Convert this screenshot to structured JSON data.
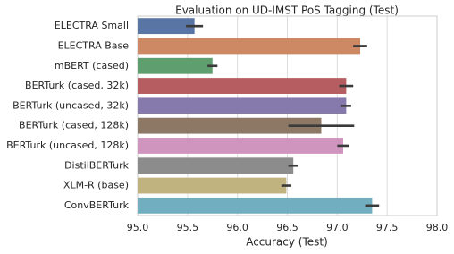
{
  "chart_data": {
    "type": "bar",
    "orientation": "horizontal",
    "title": "Evaluation on UD-IMST PoS Tagging (Test)",
    "x_label": "Accuracy (Test)",
    "categories": [
      "ELECTRA Small",
      "ELECTRA Base",
      "mBERT (cased)",
      "BERTurk (cased, 32k)",
      "BERTurk (uncased, 32k)",
      "BERTurk (cased, 128k)",
      "BERTurk (uncased, 128k)",
      "DistilBERTurk",
      "XLM-R (base)",
      "ConvBERTurk"
    ],
    "values": [
      95.57,
      97.23,
      95.75,
      97.09,
      97.09,
      96.84,
      97.06,
      96.56,
      96.49,
      97.35
    ],
    "errors": [
      0.085,
      0.07,
      0.05,
      0.07,
      0.05,
      0.33,
      0.06,
      0.05,
      0.05,
      0.07
    ],
    "colors": [
      "#5975a4",
      "#cc8963",
      "#5f9e6e",
      "#b55d60",
      "#857aab",
      "#8d7866",
      "#d095bf",
      "#8c8c8c",
      "#c1b37f",
      "#71aec0"
    ],
    "xlim": [
      95,
      98
    ],
    "xticks": [
      {
        "value": 95,
        "label": "95.0"
      },
      95.5,
      {
        "value": 96,
        "label": "96.0"
      },
      96.5,
      {
        "value": 97,
        "label": "97.0"
      },
      97.5,
      {
        "value": 98,
        "label": "98.0"
      }
    ],
    "grid": true
  }
}
